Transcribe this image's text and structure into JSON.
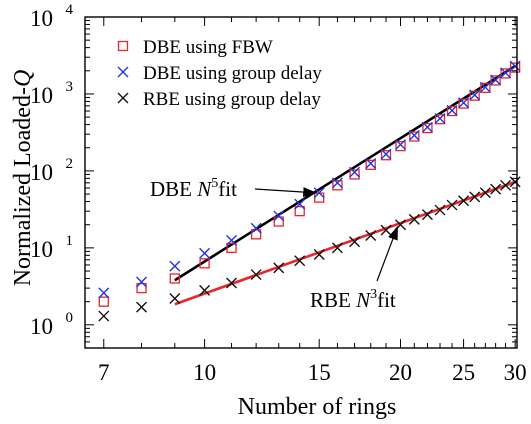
{
  "chart_data": {
    "type": "scatter",
    "xlabel": "Number of rings",
    "ylabel_main": "Normalized Loaded-",
    "ylabel_italic": "Q",
    "x_scale": "log",
    "y_scale": "log",
    "xlim": [
      6.55,
      30.2
    ],
    "ylim": [
      0.5,
      10000
    ],
    "x_ticks": [
      7,
      10,
      15,
      20,
      25,
      30
    ],
    "x_tick_labels": [
      "7",
      "10",
      "15",
      "20",
      "25",
      "30"
    ],
    "y_ticks": [
      1,
      10,
      100,
      1000,
      10000
    ],
    "y_tick_labels": [
      {
        "base": "10",
        "exp": "0"
      },
      {
        "base": "10",
        "exp": "1"
      },
      {
        "base": "10",
        "exp": "2"
      },
      {
        "base": "10",
        "exp": "3"
      },
      {
        "base": "10",
        "exp": "4"
      }
    ],
    "legend": {
      "placement": "top-left",
      "entries": [
        {
          "label": "DBE using FBW",
          "marker": "square",
          "color": "#e8262b"
        },
        {
          "label": "DBE using group delay",
          "marker": "x",
          "color": "#2135e0"
        },
        {
          "label": "RBE using group delay",
          "marker": "x",
          "color": "#111111"
        }
      ]
    },
    "series": [
      {
        "name": "DBE using FBW",
        "marker": "square",
        "color": "#e8262b",
        "x": [
          7,
          8,
          9,
          10,
          11,
          12,
          13,
          14,
          15,
          16,
          17,
          18,
          19,
          20,
          21,
          22,
          23,
          24,
          25,
          26,
          27,
          28,
          29,
          30
        ],
        "y": [
          2.0,
          3.0,
          4.0,
          6.3,
          10,
          15,
          22,
          30,
          45,
          65,
          90,
          120,
          160,
          210,
          280,
          360,
          470,
          600,
          750,
          950,
          1200,
          1500,
          1850,
          2200
        ]
      },
      {
        "name": "DBE using group delay",
        "marker": "x",
        "color": "#2135e0",
        "x": [
          7,
          8,
          9,
          10,
          11,
          12,
          13,
          14,
          15,
          16,
          17,
          18,
          19,
          20,
          21,
          22,
          23,
          24,
          25,
          26,
          27,
          28,
          29,
          30
        ],
        "y": [
          2.6,
          3.6,
          5.8,
          8.5,
          12.5,
          18,
          26,
          37,
          52,
          70,
          96,
          125,
          165,
          220,
          290,
          370,
          480,
          610,
          770,
          970,
          1220,
          1520,
          1880,
          2300
        ]
      },
      {
        "name": "RBE using group delay",
        "marker": "x",
        "color": "#111111",
        "x": [
          7,
          8,
          9,
          10,
          11,
          12,
          13,
          14,
          15,
          16,
          17,
          18,
          19,
          20,
          21,
          22,
          23,
          24,
          25,
          26,
          27,
          28,
          29,
          30
        ],
        "y": [
          1.3,
          1.7,
          2.2,
          2.8,
          3.5,
          4.5,
          5.5,
          6.8,
          8.2,
          10,
          12,
          14.5,
          17,
          20,
          23.5,
          27,
          31,
          36,
          41,
          46,
          52,
          58,
          65,
          72
        ]
      }
    ],
    "fits": [
      {
        "name": "DBE fit",
        "color": "#000000",
        "x": [
          9,
          30
        ],
        "y": [
          3.8,
          2300
        ]
      },
      {
        "name": "RBE fit",
        "color": "#e8262b",
        "x": [
          9,
          30
        ],
        "y": [
          1.85,
          72
        ]
      }
    ],
    "annotations": [
      {
        "prefix": "DBE ",
        "italic": "N",
        "sup": "5",
        "suffix": "fit",
        "arrow_to": [
          15,
          55
        ]
      },
      {
        "prefix": "RBE ",
        "italic": "N",
        "sup": "3",
        "suffix": "fit",
        "arrow_to": [
          20,
          20
        ]
      }
    ]
  }
}
